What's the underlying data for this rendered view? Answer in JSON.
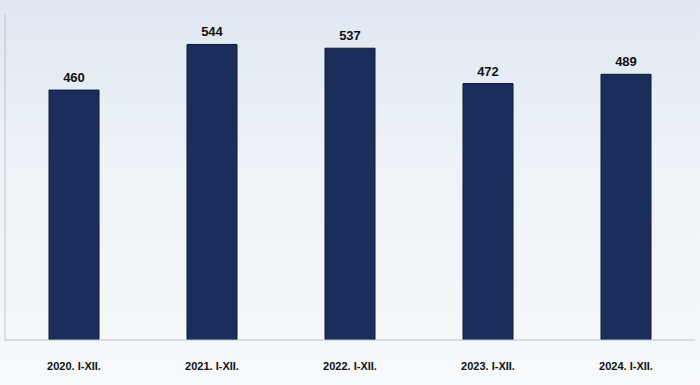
{
  "chart_data": {
    "type": "bar",
    "categories": [
      "2020. I-XII.",
      "2021. I-XII.",
      "2022. I-XII.",
      "2023. I-XII.",
      "2024. I-XII."
    ],
    "values": [
      460,
      544,
      537,
      472,
      489
    ],
    "color": "#1b2d5a",
    "ylim": [
      0,
      600
    ],
    "data_labels": true,
    "tick_labels": "x",
    "grid": false
  }
}
